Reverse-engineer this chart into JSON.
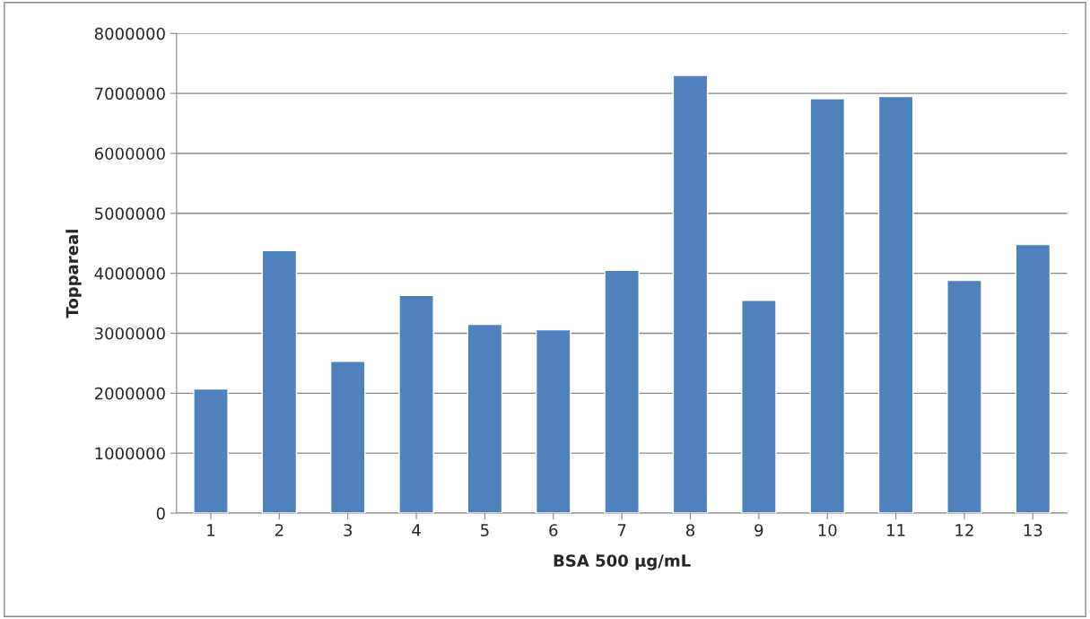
{
  "chart_data": {
    "type": "bar",
    "xlabel": "BSA 500 µg/mL",
    "ylabel": "Toppareal",
    "categories": [
      "1",
      "2",
      "3",
      "4",
      "5",
      "6",
      "7",
      "8",
      "9",
      "10",
      "11",
      "12",
      "13"
    ],
    "values": [
      2070000,
      4380000,
      2530000,
      3630000,
      3150000,
      3060000,
      4050000,
      7300000,
      3550000,
      6910000,
      6950000,
      3880000,
      4480000
    ],
    "color": "#4f81bd",
    "ylim": [
      0,
      8000000
    ],
    "yticks": [
      0,
      1000000,
      2000000,
      3000000,
      4000000,
      5000000,
      6000000,
      7000000,
      8000000
    ],
    "grid": "y"
  }
}
